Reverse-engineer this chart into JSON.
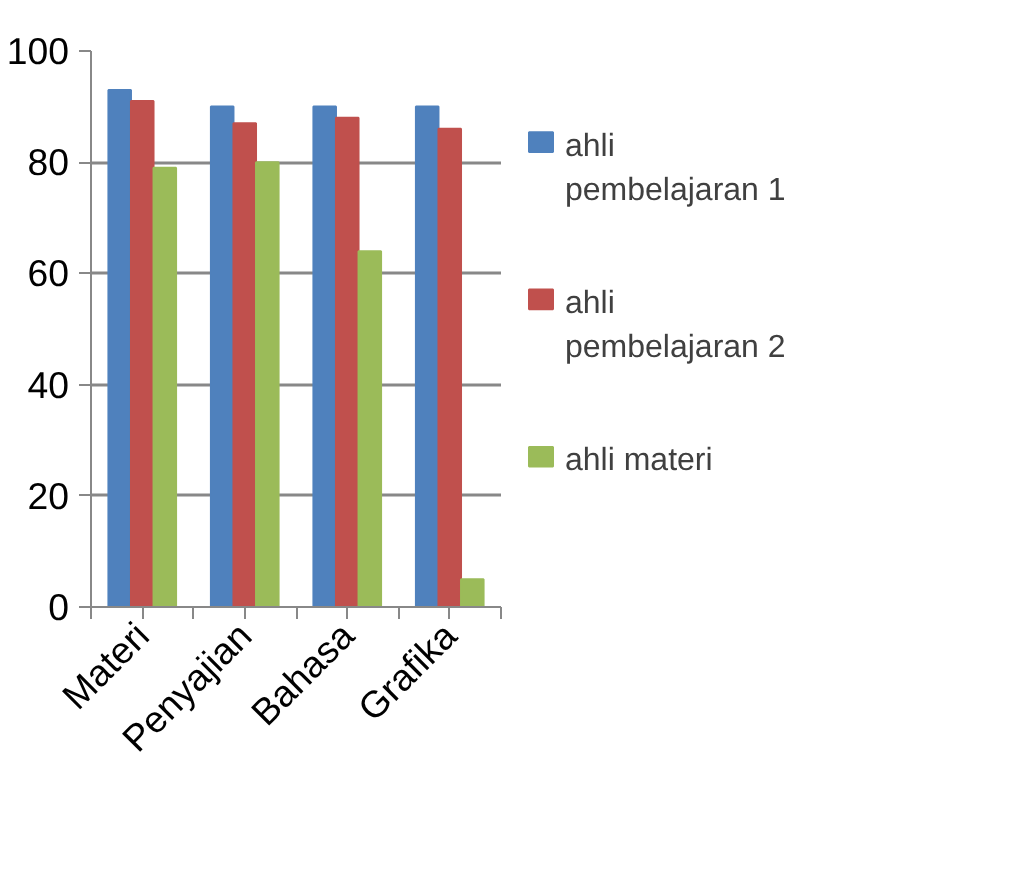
{
  "chart_data": {
    "type": "bar",
    "categories": [
      "Materi",
      "Penyajian",
      "Bahasa",
      "Grafika"
    ],
    "series": [
      {
        "name": "ahli pembelajaran 1",
        "color": "#4f81bd",
        "values": [
          93,
          90,
          90,
          90
        ]
      },
      {
        "name": "ahli pembelajaran 2",
        "color": "#c0504d",
        "values": [
          91,
          87,
          88,
          86
        ]
      },
      {
        "name": "ahli materi",
        "color": "#9bbb59",
        "values": [
          79,
          80,
          64,
          5
        ]
      }
    ],
    "ylim": [
      0,
      100
    ],
    "yticks": [
      0,
      20,
      40,
      60,
      80,
      100
    ],
    "grid": "y",
    "legend": "right"
  }
}
